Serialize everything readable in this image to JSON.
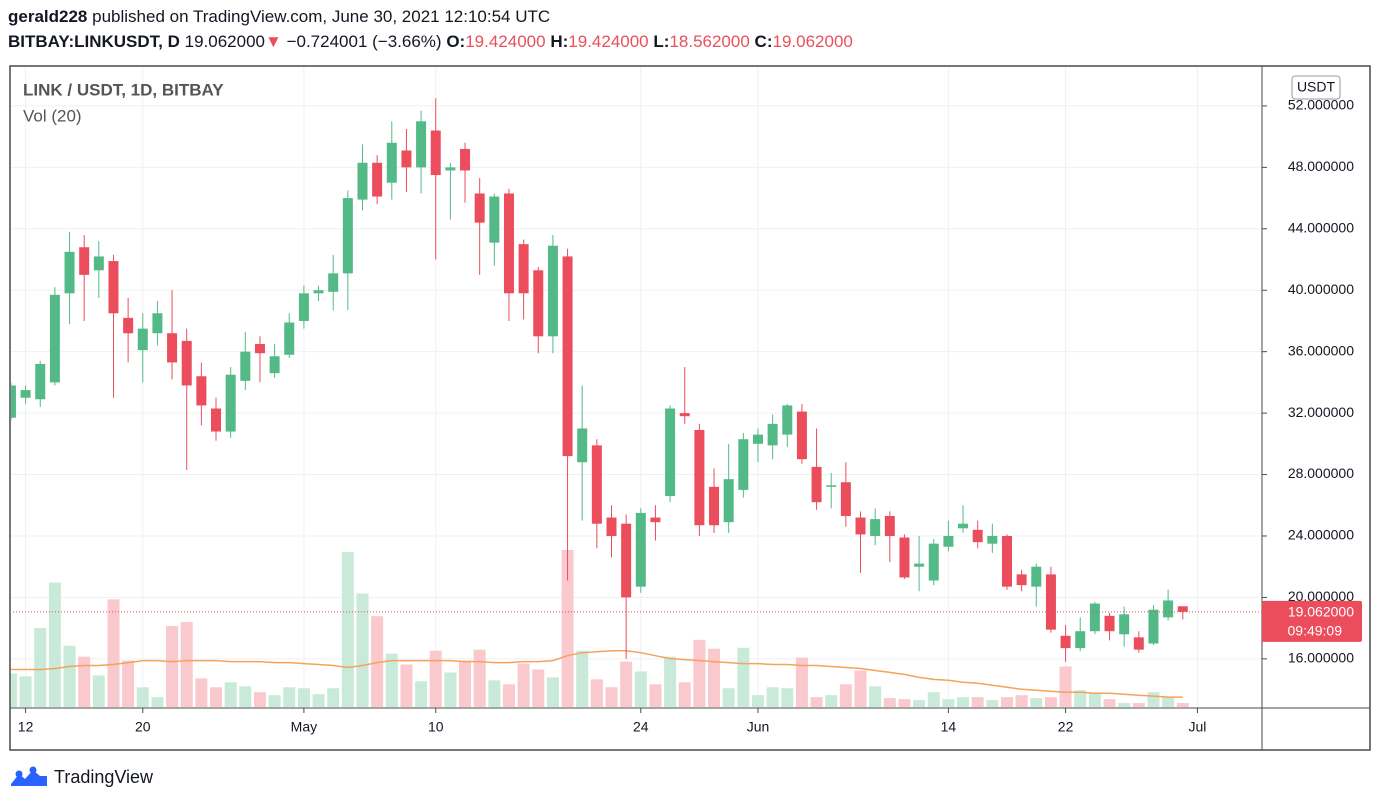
{
  "header": {
    "author": "gerald228",
    "published": "published on TradingView.com, June 30, 2021 12:10:54 UTC",
    "symbol": "BITBAY:LINKUSDT, D",
    "price": "19.062000",
    "arrow": "▼",
    "change": "−0.724001 (−3.66%)",
    "ohlc": [
      {
        "key": "O:",
        "value": "19.424000"
      },
      {
        "key": "H:",
        "value": "19.424000"
      },
      {
        "key": "L:",
        "value": "18.562000"
      },
      {
        "key": "C:",
        "value": "19.062000"
      }
    ]
  },
  "footer": {
    "brand": "TradingView"
  },
  "chart_data": {
    "type": "candlestick",
    "title": "LINK / USDT, 1D, BITBAY",
    "volume_label": "Vol (20)",
    "currency": "USDT",
    "up_color": "#53b987",
    "down_color": "#eb4d5c",
    "volume_up_color": "#c9ead9",
    "volume_down_color": "#f9c9cd",
    "ma_color": "#f5a35b",
    "grid": true,
    "x": [
      "2021-04-11",
      "2021-04-12",
      "2021-04-13",
      "2021-04-14",
      "2021-04-15",
      "2021-04-16",
      "2021-04-17",
      "2021-04-18",
      "2021-04-19",
      "2021-04-20",
      "2021-04-21",
      "2021-04-22",
      "2021-04-23",
      "2021-04-24",
      "2021-04-25",
      "2021-04-26",
      "2021-04-27",
      "2021-04-28",
      "2021-04-29",
      "2021-04-30",
      "2021-05-01",
      "2021-05-02",
      "2021-05-03",
      "2021-05-04",
      "2021-05-05",
      "2021-05-06",
      "2021-05-07",
      "2021-05-08",
      "2021-05-09",
      "2021-05-10",
      "2021-05-11",
      "2021-05-12",
      "2021-05-13",
      "2021-05-14",
      "2021-05-15",
      "2021-05-16",
      "2021-05-17",
      "2021-05-18",
      "2021-05-19",
      "2021-05-20",
      "2021-05-21",
      "2021-05-22",
      "2021-05-23",
      "2021-05-24",
      "2021-05-25",
      "2021-05-26",
      "2021-05-27",
      "2021-05-28",
      "2021-05-29",
      "2021-05-30",
      "2021-05-31",
      "2021-06-01",
      "2021-06-02",
      "2021-06-03",
      "2021-06-04",
      "2021-06-05",
      "2021-06-06",
      "2021-06-07",
      "2021-06-08",
      "2021-06-09",
      "2021-06-10",
      "2021-06-11",
      "2021-06-12",
      "2021-06-13",
      "2021-06-14",
      "2021-06-15",
      "2021-06-16",
      "2021-06-17",
      "2021-06-18",
      "2021-06-19",
      "2021-06-20",
      "2021-06-21",
      "2021-06-22",
      "2021-06-23",
      "2021-06-24",
      "2021-06-25",
      "2021-06-26",
      "2021-06-27",
      "2021-06-28",
      "2021-06-29",
      "2021-06-30"
    ],
    "open": [
      31.7,
      33.0,
      32.9,
      34.0,
      39.8,
      42.8,
      41.3,
      41.9,
      38.2,
      36.1,
      37.2,
      37.2,
      36.7,
      34.4,
      32.3,
      30.8,
      34.1,
      36.5,
      34.6,
      35.8,
      38.0,
      39.8,
      39.9,
      41.1,
      45.9,
      48.3,
      47.0,
      49.1,
      48.0,
      50.4,
      47.8,
      49.2,
      46.3,
      43.1,
      46.3,
      43.0,
      41.3,
      37.0,
      42.2,
      28.8,
      29.9,
      25.2,
      24.8,
      20.7,
      25.2,
      26.6,
      32.0,
      30.9,
      27.2,
      24.9,
      27.0,
      30.0,
      29.9,
      30.6,
      32.1,
      28.5,
      27.2,
      27.5,
      25.2,
      24.0,
      25.3,
      23.9,
      22.0,
      21.1,
      23.3,
      24.5,
      24.4,
      23.5,
      24.0,
      21.5,
      20.7,
      21.5,
      17.5,
      16.7,
      17.8,
      18.8,
      17.6,
      17.4,
      17.0,
      18.7,
      19.424
    ],
    "high": [
      34.0,
      33.8,
      35.4,
      40.2,
      43.8,
      43.6,
      43.2,
      42.3,
      39.5,
      38.5,
      39.3,
      40.0,
      37.5,
      35.3,
      33.0,
      35.0,
      37.3,
      37.0,
      36.5,
      38.5,
      40.3,
      40.3,
      42.3,
      46.5,
      49.5,
      48.8,
      51.0,
      50.5,
      51.7,
      52.5,
      48.3,
      49.6,
      47.3,
      46.3,
      46.6,
      43.3,
      41.5,
      43.6,
      42.7,
      33.8,
      30.3,
      26.0,
      25.4,
      25.8,
      26.0,
      32.5,
      35.0,
      31.3,
      28.4,
      30.0,
      30.7,
      31.0,
      31.9,
      32.6,
      32.6,
      31.0,
      28.1,
      28.8,
      25.6,
      25.8,
      25.6,
      24.1,
      24.0,
      23.8,
      25.0,
      26.0,
      25.0,
      24.8,
      24.1,
      21.8,
      22.2,
      22.0,
      18.2,
      18.7,
      19.7,
      19.0,
      19.4,
      17.8,
      19.5,
      20.5,
      19.424
    ],
    "low": [
      31.5,
      32.6,
      32.4,
      33.8,
      37.8,
      38.0,
      39.5,
      33.0,
      35.3,
      34.0,
      36.4,
      34.2,
      28.3,
      31.2,
      30.2,
      30.4,
      33.5,
      34.0,
      34.3,
      35.6,
      37.5,
      39.3,
      38.7,
      38.7,
      45.2,
      45.6,
      45.9,
      46.4,
      46.3,
      42.0,
      44.6,
      45.7,
      41.0,
      41.6,
      38.0,
      38.1,
      35.9,
      35.9,
      21.1,
      25.0,
      23.2,
      22.6,
      16.0,
      20.3,
      23.7,
      26.2,
      31.3,
      24.0,
      24.2,
      24.2,
      26.5,
      28.8,
      29.0,
      29.8,
      28.7,
      25.7,
      25.8,
      24.6,
      21.6,
      23.4,
      22.3,
      21.2,
      20.4,
      20.8,
      23.0,
      24.2,
      23.2,
      22.9,
      20.5,
      20.4,
      19.4,
      17.7,
      15.8,
      16.5,
      17.6,
      17.2,
      16.8,
      16.4,
      16.9,
      18.5,
      18.562
    ],
    "close": [
      33.8,
      33.5,
      35.2,
      39.7,
      42.5,
      41.0,
      42.2,
      38.5,
      37.2,
      37.5,
      38.5,
      35.3,
      33.8,
      32.5,
      30.8,
      34.5,
      36.0,
      35.9,
      35.7,
      37.9,
      39.8,
      40.0,
      41.1,
      46.0,
      48.3,
      46.1,
      49.6,
      48.0,
      51.0,
      47.5,
      48.0,
      47.8,
      44.4,
      46.1,
      39.8,
      39.8,
      37.0,
      42.9,
      29.2,
      31.0,
      24.8,
      24.0,
      20.0,
      25.5,
      24.9,
      32.3,
      31.8,
      24.7,
      24.7,
      27.7,
      30.3,
      30.6,
      31.3,
      32.5,
      29.0,
      26.2,
      27.3,
      25.3,
      24.1,
      25.1,
      24.0,
      21.3,
      22.2,
      23.5,
      24.0,
      24.8,
      23.6,
      24.0,
      20.7,
      20.8,
      22.0,
      17.9,
      16.7,
      17.8,
      19.6,
      17.8,
      18.9,
      16.6,
      19.2,
      19.8,
      19.062
    ],
    "volume": [
      34,
      31,
      80,
      126,
      62,
      51,
      32,
      109,
      47,
      20,
      10,
      82,
      86,
      29,
      20,
      25,
      21,
      15,
      12,
      20,
      19,
      13,
      19,
      157,
      115,
      92,
      54,
      43,
      26,
      57,
      35,
      47,
      58,
      27,
      23,
      44,
      38,
      30,
      159,
      57,
      28,
      20,
      46,
      36,
      23,
      51,
      25,
      68,
      59,
      19,
      60,
      12,
      20,
      19,
      50,
      10,
      12,
      23,
      37,
      21,
      9,
      8,
      7,
      15,
      8,
      10,
      10,
      7,
      10,
      12,
      9,
      10,
      41,
      17,
      14,
      8,
      4,
      4,
      15,
      10,
      4
    ],
    "volume_ma": [
      38,
      38,
      38,
      39,
      41,
      42,
      42,
      43,
      45,
      47,
      47,
      46,
      47,
      47,
      47,
      46,
      46,
      46,
      45,
      45,
      44,
      43,
      42,
      40,
      42,
      45,
      47,
      47,
      47,
      47,
      47,
      46,
      46,
      45,
      45,
      46,
      46,
      47,
      52,
      55,
      56,
      57,
      57,
      55,
      52,
      49,
      48,
      47,
      46,
      45,
      44,
      44,
      43,
      43,
      42,
      42,
      41,
      40,
      39,
      37,
      35,
      33,
      30,
      28,
      27,
      25,
      24,
      22,
      20,
      18,
      17,
      16,
      15,
      15,
      14,
      14,
      13,
      12,
      11,
      10,
      10
    ],
    "xlim": [
      "2021-04-10",
      "2021-07-05"
    ],
    "xticks": [
      {
        "value": "2021-04-12",
        "label": "12"
      },
      {
        "value": "2021-04-20",
        "label": "20"
      },
      {
        "value": "2021-05-01",
        "label": "May"
      },
      {
        "value": "2021-05-10",
        "label": "10"
      },
      {
        "value": "2021-05-24",
        "label": "24"
      },
      {
        "value": "2021-06-01",
        "label": "Jun"
      },
      {
        "value": "2021-06-14",
        "label": "14"
      },
      {
        "value": "2021-06-22",
        "label": "22"
      },
      {
        "value": "2021-07-01",
        "label": "Jul"
      }
    ],
    "ylim": [
      12.8,
      54.6
    ],
    "yticks": [
      {
        "value": 16,
        "label": "16.000000"
      },
      {
        "value": 20,
        "label": "20.000000"
      },
      {
        "value": 24,
        "label": "24.000000"
      },
      {
        "value": 28,
        "label": "28.000000"
      },
      {
        "value": 32,
        "label": "32.000000"
      },
      {
        "value": 36,
        "label": "36.000000"
      },
      {
        "value": 40,
        "label": "40.000000"
      },
      {
        "value": 44,
        "label": "44.000000"
      },
      {
        "value": 48,
        "label": "48.000000"
      },
      {
        "value": 52,
        "label": "52.000000"
      }
    ],
    "last_price": {
      "value": 19.062,
      "label": "19.062000"
    },
    "countdown": "09:49:09"
  }
}
